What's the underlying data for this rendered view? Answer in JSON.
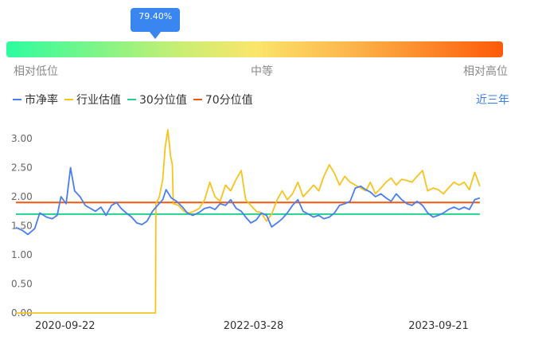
{
  "gauge": {
    "value_label": "79.40%",
    "marker_fraction": 0.3,
    "low_label": "相对低位",
    "mid_label": "中等",
    "high_label": "相对高位"
  },
  "legend": {
    "items": [
      {
        "label": "市净率",
        "color": "#4a7ef0"
      },
      {
        "label": "行业估值",
        "color": "#f7c31f"
      },
      {
        "label": "30分位值",
        "color": "#22d18b"
      },
      {
        "label": "70分位值",
        "color": "#f2590f"
      }
    ],
    "period": "近三年"
  },
  "chart_data": {
    "type": "line",
    "x_ticks": [
      "2020-09-22",
      "2022-03-28",
      "2023-09-21"
    ],
    "y_ticks": [
      "3.00",
      "2.50",
      "2.00",
      "1.50",
      "1.00",
      "0.50",
      "0.00"
    ],
    "ylim": [
      0,
      3.2
    ],
    "x_range": [
      "2020-05-01",
      "2024-06-01"
    ],
    "series": [
      {
        "name": "市净率",
        "color": "#4a7ef0",
        "points": [
          [
            "2020-05-01",
            1.47
          ],
          [
            "2020-05-20",
            1.42
          ],
          [
            "2020-06-05",
            1.35
          ],
          [
            "2020-06-25",
            1.45
          ],
          [
            "2020-07-10",
            1.72
          ],
          [
            "2020-07-30",
            1.65
          ],
          [
            "2020-08-15",
            1.62
          ],
          [
            "2020-08-30",
            1.68
          ],
          [
            "2020-09-10",
            2.0
          ],
          [
            "2020-09-25",
            1.88
          ],
          [
            "2020-10-08",
            2.5
          ],
          [
            "2020-10-20",
            2.1
          ],
          [
            "2020-11-05",
            2.0
          ],
          [
            "2020-11-20",
            1.85
          ],
          [
            "2020-12-05",
            1.8
          ],
          [
            "2020-12-20",
            1.75
          ],
          [
            "2021-01-05",
            1.82
          ],
          [
            "2021-01-20",
            1.68
          ],
          [
            "2021-02-05",
            1.85
          ],
          [
            "2021-02-20",
            1.9
          ],
          [
            "2021-03-05",
            1.8
          ],
          [
            "2021-03-20",
            1.72
          ],
          [
            "2021-04-05",
            1.65
          ],
          [
            "2021-04-20",
            1.55
          ],
          [
            "2021-05-05",
            1.52
          ],
          [
            "2021-05-20",
            1.58
          ],
          [
            "2021-06-05",
            1.75
          ],
          [
            "2021-06-20",
            1.85
          ],
          [
            "2021-07-05",
            1.95
          ],
          [
            "2021-07-15",
            2.12
          ],
          [
            "2021-07-30",
            1.98
          ],
          [
            "2021-08-15",
            1.92
          ],
          [
            "2021-09-01",
            1.82
          ],
          [
            "2021-09-15",
            1.72
          ],
          [
            "2021-10-01",
            1.68
          ],
          [
            "2021-10-20",
            1.73
          ],
          [
            "2021-11-05",
            1.8
          ],
          [
            "2021-11-20",
            1.82
          ],
          [
            "2021-12-05",
            1.78
          ],
          [
            "2021-12-20",
            1.88
          ],
          [
            "2022-01-05",
            1.85
          ],
          [
            "2022-01-20",
            1.95
          ],
          [
            "2022-02-05",
            1.8
          ],
          [
            "2022-02-20",
            1.75
          ],
          [
            "2022-03-05",
            1.65
          ],
          [
            "2022-03-20",
            1.55
          ],
          [
            "2022-04-05",
            1.6
          ],
          [
            "2022-04-20",
            1.72
          ],
          [
            "2022-05-05",
            1.68
          ],
          [
            "2022-05-20",
            1.48
          ],
          [
            "2022-06-05",
            1.55
          ],
          [
            "2022-06-20",
            1.62
          ],
          [
            "2022-07-05",
            1.72
          ],
          [
            "2022-07-20",
            1.85
          ],
          [
            "2022-08-05",
            1.95
          ],
          [
            "2022-08-20",
            1.75
          ],
          [
            "2022-09-05",
            1.7
          ],
          [
            "2022-09-20",
            1.65
          ],
          [
            "2022-10-05",
            1.68
          ],
          [
            "2022-10-20",
            1.62
          ],
          [
            "2022-11-05",
            1.65
          ],
          [
            "2022-11-20",
            1.72
          ],
          [
            "2022-12-05",
            1.85
          ],
          [
            "2022-12-20",
            1.88
          ],
          [
            "2023-01-05",
            1.92
          ],
          [
            "2023-01-20",
            2.15
          ],
          [
            "2023-02-05",
            2.18
          ],
          [
            "2023-02-20",
            2.12
          ],
          [
            "2023-03-05",
            2.08
          ],
          [
            "2023-03-20",
            2.0
          ],
          [
            "2023-04-05",
            2.05
          ],
          [
            "2023-04-20",
            1.98
          ],
          [
            "2023-05-05",
            1.92
          ],
          [
            "2023-05-20",
            2.05
          ],
          [
            "2023-06-05",
            1.95
          ],
          [
            "2023-06-20",
            1.88
          ],
          [
            "2023-07-05",
            1.85
          ],
          [
            "2023-07-20",
            1.92
          ],
          [
            "2023-08-05",
            1.85
          ],
          [
            "2023-08-20",
            1.72
          ],
          [
            "2023-09-05",
            1.65
          ],
          [
            "2023-09-20",
            1.68
          ],
          [
            "2023-10-05",
            1.72
          ],
          [
            "2023-10-20",
            1.78
          ],
          [
            "2023-11-05",
            1.82
          ],
          [
            "2023-11-20",
            1.78
          ],
          [
            "2023-12-05",
            1.82
          ],
          [
            "2023-12-20",
            1.78
          ],
          [
            "2024-01-05",
            1.95
          ],
          [
            "2024-01-20",
            1.98
          ]
        ]
      },
      {
        "name": "行业估值",
        "color": "#f7c31f",
        "points": [
          [
            "2020-05-01",
            0.0
          ],
          [
            "2021-06-14",
            0.0
          ],
          [
            "2021-06-15",
            1.88
          ],
          [
            "2021-06-25",
            2.0
          ],
          [
            "2021-07-05",
            2.3
          ],
          [
            "2021-07-12",
            2.85
          ],
          [
            "2021-07-20",
            3.15
          ],
          [
            "2021-07-28",
            2.7
          ],
          [
            "2021-08-02",
            2.55
          ],
          [
            "2021-08-05",
            1.88
          ],
          [
            "2021-08-20",
            1.85
          ],
          [
            "2021-09-05",
            1.75
          ],
          [
            "2021-09-20",
            1.72
          ],
          [
            "2021-10-05",
            1.75
          ],
          [
            "2021-10-20",
            1.8
          ],
          [
            "2021-11-05",
            1.95
          ],
          [
            "2021-11-20",
            2.25
          ],
          [
            "2021-12-05",
            2.0
          ],
          [
            "2021-12-20",
            1.92
          ],
          [
            "2022-01-05",
            2.2
          ],
          [
            "2022-01-20",
            2.1
          ],
          [
            "2022-02-05",
            2.3
          ],
          [
            "2022-02-20",
            2.45
          ],
          [
            "2022-03-05",
            1.95
          ],
          [
            "2022-03-20",
            1.85
          ],
          [
            "2022-04-05",
            1.75
          ],
          [
            "2022-04-20",
            1.72
          ],
          [
            "2022-05-05",
            1.58
          ],
          [
            "2022-05-20",
            1.7
          ],
          [
            "2022-06-05",
            1.95
          ],
          [
            "2022-06-20",
            2.1
          ],
          [
            "2022-07-05",
            1.95
          ],
          [
            "2022-07-20",
            2.05
          ],
          [
            "2022-08-05",
            2.25
          ],
          [
            "2022-08-20",
            2.0
          ],
          [
            "2022-09-05",
            2.1
          ],
          [
            "2022-09-20",
            2.2
          ],
          [
            "2022-10-05",
            2.1
          ],
          [
            "2022-10-20",
            2.35
          ],
          [
            "2022-11-05",
            2.55
          ],
          [
            "2022-11-20",
            2.4
          ],
          [
            "2022-12-05",
            2.2
          ],
          [
            "2022-12-20",
            2.35
          ],
          [
            "2023-01-05",
            2.25
          ],
          [
            "2023-01-20",
            2.2
          ],
          [
            "2023-02-05",
            2.15
          ],
          [
            "2023-02-20",
            2.1
          ],
          [
            "2023-03-05",
            2.25
          ],
          [
            "2023-03-20",
            2.05
          ],
          [
            "2023-04-05",
            2.15
          ],
          [
            "2023-04-20",
            2.25
          ],
          [
            "2023-05-05",
            2.32
          ],
          [
            "2023-05-20",
            2.2
          ],
          [
            "2023-06-05",
            2.3
          ],
          [
            "2023-06-20",
            2.28
          ],
          [
            "2023-07-05",
            2.25
          ],
          [
            "2023-07-20",
            2.35
          ],
          [
            "2023-08-05",
            2.45
          ],
          [
            "2023-08-20",
            2.1
          ],
          [
            "2023-09-05",
            2.15
          ],
          [
            "2023-09-20",
            2.12
          ],
          [
            "2023-10-05",
            2.05
          ],
          [
            "2023-10-20",
            2.15
          ],
          [
            "2023-11-05",
            2.25
          ],
          [
            "2023-11-20",
            2.2
          ],
          [
            "2023-12-05",
            2.25
          ],
          [
            "2023-12-20",
            2.12
          ],
          [
            "2024-01-05",
            2.42
          ],
          [
            "2024-01-20",
            2.18
          ]
        ]
      },
      {
        "name": "30分位值",
        "color": "#22d18b",
        "points": [
          [
            "2020-05-01",
            1.7
          ],
          [
            "2024-01-20",
            1.7
          ]
        ]
      },
      {
        "name": "70分位值",
        "color": "#f2590f",
        "points": [
          [
            "2020-05-01",
            1.9
          ],
          [
            "2024-01-20",
            1.9
          ]
        ]
      }
    ]
  }
}
